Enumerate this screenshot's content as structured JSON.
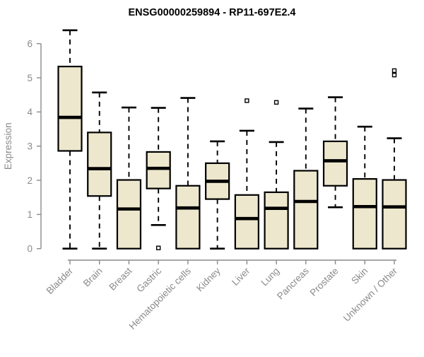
{
  "chart_data": {
    "type": "boxplot",
    "title": "ENSG00000259894 - RP11-697E2.4",
    "ylabel": "Expression",
    "ylim": [
      0,
      6
    ],
    "yticks": [
      0,
      1,
      2,
      3,
      4,
      5,
      6
    ],
    "grid": false,
    "legend": "none",
    "categories": [
      "Bladder",
      "Brain",
      "Breast",
      "Gastric",
      "Hematopoietic cells",
      "Kidney",
      "Liver",
      "Lung",
      "Pancreas",
      "Prostate",
      "Skin",
      "Unknown / Other"
    ],
    "boxes": [
      {
        "category": "Bladder",
        "whisker_low": 0,
        "q1": 2.86,
        "median": 3.84,
        "q3": 5.33,
        "whisker_high": 6.39,
        "outliers": []
      },
      {
        "category": "Brain",
        "whisker_low": 0,
        "q1": 1.54,
        "median": 2.34,
        "q3": 3.4,
        "whisker_high": 4.57,
        "outliers": []
      },
      {
        "category": "Breast",
        "whisker_low": 0,
        "q1": 0,
        "median": 1.16,
        "q3": 2.01,
        "whisker_high": 4.13,
        "outliers": []
      },
      {
        "category": "Gastric",
        "whisker_low": 0.69,
        "q1": 1.76,
        "median": 2.35,
        "q3": 2.83,
        "whisker_high": 4.12,
        "outliers": [
          0.02
        ]
      },
      {
        "category": "Hematopoietic cells",
        "whisker_low": 0,
        "q1": 0,
        "median": 1.19,
        "q3": 1.84,
        "whisker_high": 4.41,
        "outliers": []
      },
      {
        "category": "Kidney",
        "whisker_low": 0,
        "q1": 1.45,
        "median": 1.97,
        "q3": 2.5,
        "whisker_high": 3.14,
        "outliers": []
      },
      {
        "category": "Liver",
        "whisker_low": 0,
        "q1": 0,
        "median": 0.88,
        "q3": 1.57,
        "whisker_high": 3.45,
        "outliers": [
          4.33
        ]
      },
      {
        "category": "Lung",
        "whisker_low": 0,
        "q1": 0,
        "median": 1.18,
        "q3": 1.65,
        "whisker_high": 3.12,
        "outliers": [
          4.28
        ]
      },
      {
        "category": "Pancreas",
        "whisker_low": 0,
        "q1": 0,
        "median": 1.38,
        "q3": 2.28,
        "whisker_high": 4.1,
        "outliers": []
      },
      {
        "category": "Prostate",
        "whisker_low": 1.21,
        "q1": 1.84,
        "median": 2.57,
        "q3": 3.14,
        "whisker_high": 4.43,
        "outliers": []
      },
      {
        "category": "Skin",
        "whisker_low": 0,
        "q1": 0,
        "median": 1.23,
        "q3": 2.04,
        "whisker_high": 3.57,
        "outliers": []
      },
      {
        "category": "Unknown / Other",
        "whisker_low": 0,
        "q1": 0,
        "median": 1.22,
        "q3": 2.01,
        "whisker_high": 3.23,
        "outliers": [
          5.08,
          5.21
        ]
      }
    ],
    "colors": {
      "box_fill": "#EDE7CD",
      "box_border": "#000000",
      "median": "#000000",
      "whisker": "#000000",
      "outlier_stroke": "#000000",
      "axis": "#8A8A8A",
      "tick_label": "#8A8A8A",
      "axis_label": "#8A8A8A",
      "title": "#000000",
      "background": "#FFFFFF"
    }
  }
}
